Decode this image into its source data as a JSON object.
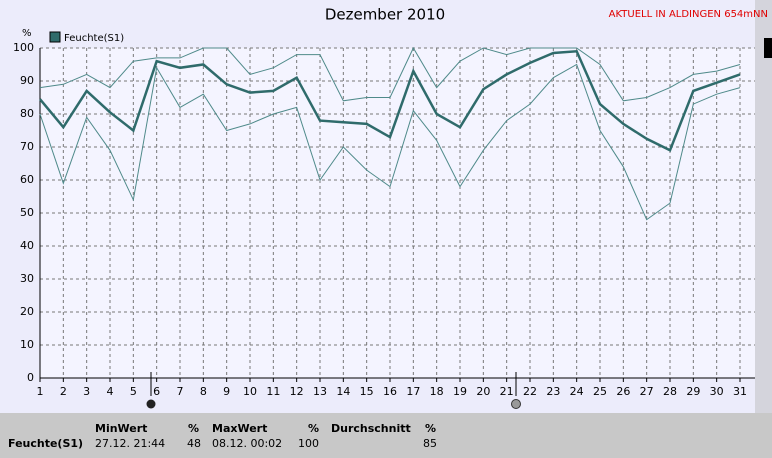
{
  "chart_data": {
    "type": "line",
    "title": "Dezember 2010",
    "y_label": "%",
    "x": [
      1,
      2,
      3,
      4,
      5,
      6,
      7,
      8,
      9,
      10,
      11,
      12,
      13,
      14,
      15,
      16,
      17,
      18,
      19,
      20,
      21,
      22,
      23,
      24,
      25,
      26,
      27,
      28,
      29,
      30,
      31
    ],
    "xlim": [
      1,
      31
    ],
    "xticks": [
      1,
      2,
      3,
      4,
      5,
      6,
      7,
      8,
      9,
      10,
      11,
      12,
      13,
      14,
      15,
      16,
      17,
      18,
      19,
      20,
      21,
      22,
      23,
      24,
      25,
      26,
      27,
      28,
      29,
      30,
      31
    ],
    "ylim": [
      0,
      100
    ],
    "yticks": [
      0,
      10,
      20,
      30,
      40,
      50,
      60,
      70,
      80,
      90,
      100
    ],
    "grid": true,
    "series": [
      {
        "name": "Feuchte(S1)",
        "color": "#2f6b6b",
        "values": [
          84.5,
          76,
          87,
          80.5,
          75,
          96,
          94,
          95,
          89,
          86.5,
          87,
          91,
          78,
          77.5,
          77,
          73,
          93,
          80,
          76,
          87.5,
          92,
          95.5,
          98.5,
          99,
          83,
          77,
          72.5,
          69,
          87,
          89.5,
          92
        ]
      },
      {
        "color": "#4f8a8a",
        "values": [
          88,
          89,
          92,
          88,
          96,
          97,
          97,
          100,
          100,
          92,
          94,
          98,
          98,
          84,
          85,
          85,
          100,
          88,
          96,
          100,
          98,
          100,
          100,
          100,
          95,
          84,
          85,
          88,
          92,
          93,
          95
        ]
      },
      {
        "color": "#4f8a8a",
        "values": [
          80,
          59,
          79,
          69,
          54,
          94,
          82,
          86,
          75,
          77,
          80,
          82,
          60,
          70,
          63,
          58,
          81,
          72,
          58,
          69,
          78,
          83,
          91,
          95,
          75,
          64,
          48,
          53,
          83,
          86,
          88
        ]
      }
    ]
  },
  "header": {
    "station": "AKTUELL IN ALDINGEN 654mNN"
  },
  "table": {
    "headers": [
      "MinWert",
      "%",
      "MaxWert",
      "%",
      "Durchschnitt",
      "%"
    ],
    "rows": [
      [
        "Feuchte(S1)",
        "27.12. 21:44",
        48,
        "08.12. 00:02",
        100,
        85
      ]
    ]
  }
}
